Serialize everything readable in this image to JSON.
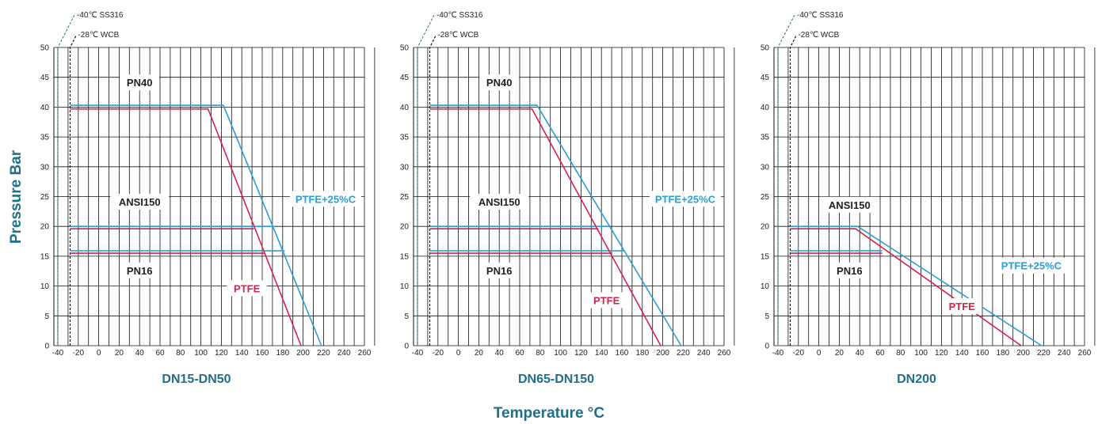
{
  "ylabel": "Pressure Bar",
  "xlabel": "Temperature °C",
  "colors": {
    "blue": "#2a9fd6",
    "red": "#d6234e",
    "title": "#1f6f86",
    "grid": "#111111"
  },
  "notes": {
    "ss316": "-40℃ SS316",
    "wcb": "-28℃ WCB"
  },
  "xticks": [
    -40,
    -20,
    0,
    20,
    40,
    60,
    80,
    100,
    120,
    140,
    160,
    180,
    200,
    220,
    240,
    260
  ],
  "yticks": [
    0,
    5,
    10,
    15,
    20,
    25,
    30,
    35,
    40,
    45,
    50
  ],
  "chart_data": [
    {
      "type": "line",
      "title": "DN15-DN50",
      "xlim": [
        -50,
        270
      ],
      "ylim": [
        0,
        50
      ],
      "labels": {
        "pn40": "PN40",
        "ansi150": "ANSI150",
        "pn16": "PN16",
        "ptfe": "PTFE",
        "ptfe25": "PTFE+25%C"
      },
      "series": [
        {
          "name": "PTFE+25%C",
          "color": "blue",
          "x": [
            -28,
            122,
            218
          ],
          "y": [
            40.3,
            40.3,
            0
          ]
        },
        {
          "name": "PTFE+25%C",
          "color": "blue",
          "x": [
            -28,
            172
          ],
          "y": [
            20,
            20
          ]
        },
        {
          "name": "PTFE+25%C",
          "color": "blue",
          "x": [
            -28,
            182
          ],
          "y": [
            15.9,
            15.9
          ]
        },
        {
          "name": "PTFE",
          "color": "red",
          "x": [
            -28,
            107,
            198
          ],
          "y": [
            39.7,
            39.7,
            0
          ]
        },
        {
          "name": "PTFE",
          "color": "red",
          "x": [
            -28,
            152
          ],
          "y": [
            19.6,
            19.6
          ]
        },
        {
          "name": "PTFE",
          "color": "red",
          "x": [
            -28,
            162
          ],
          "y": [
            15.5,
            15.5
          ]
        }
      ]
    },
    {
      "type": "line",
      "title": "DN65-DN150",
      "xlim": [
        -50,
        270
      ],
      "ylim": [
        0,
        50
      ],
      "labels": {
        "pn40": "PN40",
        "ansi150": "ANSI150",
        "pn16": "PN16",
        "ptfe": "PTFE",
        "ptfe25": "PTFE+25%C"
      },
      "series": [
        {
          "name": "PTFE+25%C",
          "color": "blue",
          "x": [
            -28,
            77,
            218
          ],
          "y": [
            40.3,
            40.3,
            0
          ]
        },
        {
          "name": "PTFE+25%C",
          "color": "blue",
          "x": [
            -28,
            147
          ],
          "y": [
            20,
            20
          ]
        },
        {
          "name": "PTFE+25%C",
          "color": "blue",
          "x": [
            -28,
            162
          ],
          "y": [
            15.9,
            15.9
          ]
        },
        {
          "name": "PTFE",
          "color": "red",
          "x": [
            -28,
            72,
            198
          ],
          "y": [
            39.7,
            39.7,
            0
          ]
        },
        {
          "name": "PTFE",
          "color": "red",
          "x": [
            -28,
            137
          ],
          "y": [
            19.6,
            19.6
          ]
        },
        {
          "name": "PTFE",
          "color": "red",
          "x": [
            -28,
            150
          ],
          "y": [
            15.5,
            15.5
          ]
        }
      ]
    },
    {
      "type": "line",
      "title": "DN200",
      "xlim": [
        -50,
        270
      ],
      "ylim": [
        0,
        50
      ],
      "labels": {
        "pn40": "",
        "ansi150": "ANSI150",
        "pn16": "PN16",
        "ptfe": "PTFE",
        "ptfe25": "PTFE+25%C"
      },
      "series": [
        {
          "name": "PTFE+25%C",
          "color": "blue",
          "x": [
            -28,
            38,
            218
          ],
          "y": [
            20,
            20,
            0
          ]
        },
        {
          "name": "PTFE+25%C",
          "color": "blue",
          "x": [
            -28,
            62
          ],
          "y": [
            15.9,
            15.9
          ]
        },
        {
          "name": "PTFE",
          "color": "red",
          "x": [
            -28,
            36,
            198
          ],
          "y": [
            19.6,
            19.6,
            0
          ]
        },
        {
          "name": "PTFE",
          "color": "red",
          "x": [
            -28,
            62
          ],
          "y": [
            15.5,
            15.5
          ]
        }
      ]
    }
  ]
}
